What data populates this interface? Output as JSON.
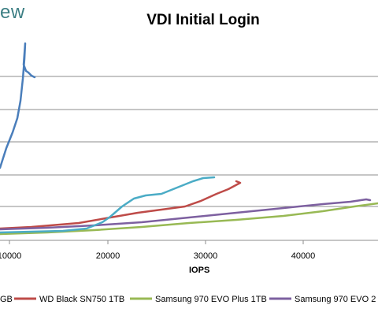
{
  "header": {
    "logo_text": "ew"
  },
  "chart_data": {
    "type": "line",
    "title": "VDI Initial Login",
    "xlabel": "IOPS",
    "ylabel": "",
    "xlim": [
      0,
      48000
    ],
    "x_ticks": [
      "10000",
      "20000",
      "30000",
      "40000"
    ],
    "grid": true,
    "legend_position": "bottom",
    "series": [
      {
        "name": "",
        "label": "GB",
        "color": "#4a7ebb",
        "points": [
          [
            500,
            210
          ],
          [
            2000,
            180
          ],
          [
            3500,
            150
          ],
          [
            5000,
            120
          ],
          [
            6500,
            92
          ],
          [
            8000,
            70
          ],
          [
            9500,
            55
          ],
          [
            10500,
            40
          ],
          [
            11200,
            25
          ],
          [
            11500,
            12
          ],
          [
            11600,
            2
          ],
          [
            11800,
            8
          ],
          [
            12200,
            4
          ]
        ]
      },
      {
        "name": "WD Black SN750 1TB",
        "label": "WD Black SN750 1TB",
        "color": "#be4b48",
        "points": [
          [
            0,
            1.0
          ],
          [
            5000,
            1.2
          ],
          [
            10000,
            1.5
          ],
          [
            15000,
            2.0
          ],
          [
            20000,
            2.8
          ],
          [
            25000,
            4.0
          ],
          [
            28000,
            5.0
          ],
          [
            30000,
            6.2
          ],
          [
            32000,
            7.4
          ],
          [
            33500,
            8.4
          ],
          [
            32800,
            8.2
          ]
        ]
      },
      {
        "name": "Samsung 970 EVO Plus 1TB",
        "label": "Samsung 970 EVO Plus 1TB",
        "color": "#98b954",
        "points": [
          [
            0,
            0.6
          ],
          [
            10000,
            0.9
          ],
          [
            20000,
            1.6
          ],
          [
            30000,
            2.5
          ],
          [
            40000,
            3.8
          ],
          [
            45000,
            4.8
          ],
          [
            48000,
            5.6
          ]
        ]
      },
      {
        "name": "Samsung 970 EVO 2",
        "label": "Samsung 970 EVO 2",
        "color": "#7d60a0",
        "points": [
          [
            0,
            1.2
          ],
          [
            10000,
            1.6
          ],
          [
            20000,
            2.4
          ],
          [
            30000,
            3.8
          ],
          [
            40000,
            5.2
          ],
          [
            45000,
            6.2
          ],
          [
            47000,
            6.8
          ],
          [
            47500,
            6.6
          ]
        ]
      },
      {
        "name": "",
        "label": "",
        "color": "#4bacc6",
        "points": [
          [
            0,
            0.8
          ],
          [
            5000,
            1.0
          ],
          [
            10000,
            1.2
          ],
          [
            15000,
            2.0
          ],
          [
            19000,
            3.0
          ],
          [
            21000,
            4.6
          ],
          [
            23000,
            6.8
          ],
          [
            25000,
            7.2
          ],
          [
            26500,
            7.8
          ],
          [
            28000,
            9.0
          ],
          [
            29500,
            10.0
          ],
          [
            30500,
            10.2
          ],
          [
            31000,
            10.0
          ]
        ]
      }
    ]
  }
}
